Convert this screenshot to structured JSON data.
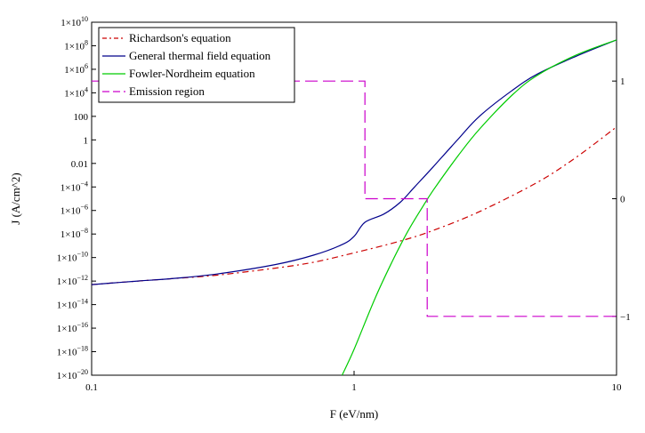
{
  "chart_data": {
    "type": "line",
    "xlabel": "F (eV/nm)",
    "ylabel": "J (A/cm^2)",
    "x_scale": "log",
    "y_scale": "log",
    "xlim": [
      0.1,
      10
    ],
    "ylim": [
      1e-20,
      10000000000.0
    ],
    "y2lim": [
      -1.5,
      1.5
    ],
    "x_ticks": [
      {
        "value": 0.1,
        "label": "0.1"
      },
      {
        "value": 1,
        "label": "1"
      },
      {
        "value": 10,
        "label": "10"
      }
    ],
    "y_ticks": [
      {
        "exp": 10,
        "label": "1×10",
        "sup": "10"
      },
      {
        "exp": 8,
        "label": "1×10",
        "sup": "8"
      },
      {
        "exp": 6,
        "label": "1×10",
        "sup": "6"
      },
      {
        "exp": 4,
        "label": "1×10",
        "sup": "4"
      },
      {
        "exp": 2,
        "label": "100",
        "sup": ""
      },
      {
        "exp": 0,
        "label": "1",
        "sup": ""
      },
      {
        "exp": -2,
        "label": "0.01",
        "sup": ""
      },
      {
        "exp": -4,
        "label": "1×10",
        "sup": "−4"
      },
      {
        "exp": -6,
        "label": "1×10",
        "sup": "−6"
      },
      {
        "exp": -8,
        "label": "1×10",
        "sup": "−8"
      },
      {
        "exp": -10,
        "label": "1×10",
        "sup": "−10"
      },
      {
        "exp": -12,
        "label": "1×10",
        "sup": "−12"
      },
      {
        "exp": -14,
        "label": "1×10",
        "sup": "−14"
      },
      {
        "exp": -16,
        "label": "1×10",
        "sup": "−16"
      },
      {
        "exp": -18,
        "label": "1×10",
        "sup": "−18"
      },
      {
        "exp": -20,
        "label": "1×10",
        "sup": "−20"
      }
    ],
    "y2_ticks": [
      {
        "value": 1,
        "label": "1"
      },
      {
        "value": 0,
        "label": "0"
      },
      {
        "value": -1,
        "label": "−1"
      }
    ],
    "legend_position": "top-left",
    "series": [
      {
        "name": "Richardson's equation",
        "color": "#cc0000",
        "dash": "dashdot",
        "axis": "left",
        "x": [
          0.1,
          0.15,
          0.2,
          0.3,
          0.5,
          0.7,
          1.0,
          1.5,
          2.0,
          3.0,
          5.0,
          7.0,
          10.0
        ],
        "y_log10": [
          -12.3,
          -12.0,
          -11.8,
          -11.5,
          -10.9,
          -10.4,
          -9.6,
          -8.6,
          -7.7,
          -6.1,
          -3.6,
          -1.5,
          1.1
        ]
      },
      {
        "name": "General thermal field equation",
        "color": "#00008b",
        "dash": "solid",
        "axis": "left",
        "x": [
          0.1,
          0.15,
          0.2,
          0.3,
          0.5,
          0.7,
          0.9,
          1.0,
          1.1,
          1.3,
          1.5,
          1.7,
          2.0,
          2.5,
          3.0,
          4.0,
          5.0,
          7.0,
          10.0
        ],
        "y_log10": [
          -12.3,
          -12.0,
          -11.8,
          -11.4,
          -10.6,
          -9.8,
          -8.9,
          -8.2,
          -7.0,
          -6.3,
          -5.3,
          -4.0,
          -2.3,
          0.1,
          2.0,
          4.2,
          5.6,
          7.1,
          8.5
        ]
      },
      {
        "name": "Fowler-Nordheim equation",
        "color": "#00cc00",
        "dash": "solid",
        "axis": "left",
        "x": [
          0.9,
          1.0,
          1.2,
          1.4,
          1.6,
          1.8,
          2.0,
          2.5,
          3.0,
          4.0,
          5.0,
          7.0,
          10.0
        ],
        "y_log10": [
          -20,
          -17.8,
          -13.5,
          -10.3,
          -7.8,
          -5.9,
          -4.3,
          -1.3,
          0.9,
          3.8,
          5.5,
          7.2,
          8.5
        ]
      },
      {
        "name": "Emission region",
        "color": "#cc00cc",
        "dash": "dashed",
        "axis": "right",
        "x": [
          0.1,
          1.1,
          1.1,
          1.9,
          1.9,
          10.0
        ],
        "y": [
          1,
          1,
          0,
          0,
          -1,
          -1
        ]
      }
    ]
  }
}
